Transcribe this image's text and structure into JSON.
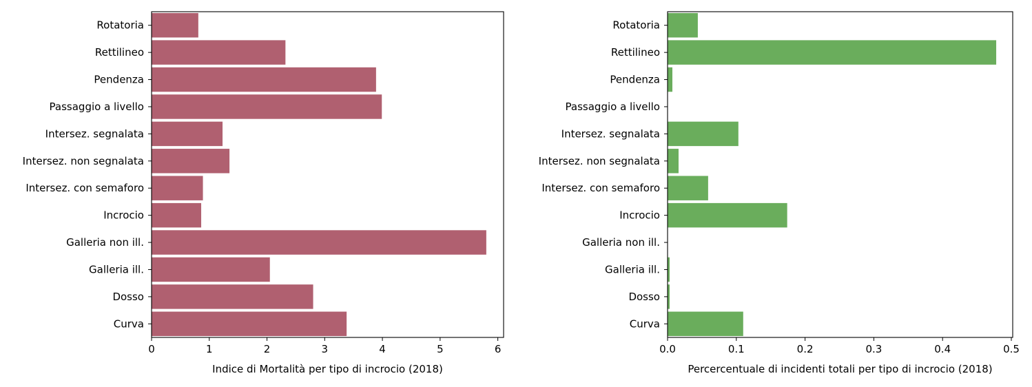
{
  "chart_data": [
    {
      "type": "bar",
      "orientation": "horizontal",
      "title": "",
      "xlabel": "Indice di Mortalità per tipo di incrocio (2018)",
      "ylabel": "",
      "xlim": [
        0,
        6.1
      ],
      "xticks": [
        0,
        1,
        2,
        3,
        4,
        5,
        6
      ],
      "xtick_labels": [
        "0",
        "1",
        "2",
        "3",
        "4",
        "5",
        "6"
      ],
      "grid": false,
      "color": "#b06070",
      "categories": [
        "Rotatoria",
        "Rettilineo",
        "Pendenza",
        "Passaggio a livello",
        "Intersez. segnalata",
        "Intersez. non segnalata",
        "Intersez. con semaforo",
        "Incrocio",
        "Galleria non ill.",
        "Galleria ill.",
        "Dosso",
        "Curva"
      ],
      "values": [
        0.81,
        2.32,
        3.89,
        3.99,
        1.23,
        1.35,
        0.89,
        0.86,
        5.8,
        2.05,
        2.8,
        3.38
      ]
    },
    {
      "type": "bar",
      "orientation": "horizontal",
      "title": "",
      "xlabel": "Percercentuale di incidenti totali per tipo di incrocio (2018)",
      "ylabel": "",
      "xlim": [
        0,
        0.502
      ],
      "xticks": [
        0,
        0.1,
        0.2,
        0.3,
        0.4,
        0.5
      ],
      "xtick_labels": [
        "0.0",
        "0.1",
        "0.2",
        "0.3",
        "0.4",
        "0.5"
      ],
      "grid": false,
      "color": "#6aad5c",
      "categories": [
        "Rotatoria",
        "Rettilineo",
        "Pendenza",
        "Passaggio a livello",
        "Intersez. segnalata",
        "Intersez. non segnalata",
        "Intersez. con semaforo",
        "Incrocio",
        "Galleria non ill.",
        "Galleria ill.",
        "Dosso",
        "Curva"
      ],
      "values": [
        0.044,
        0.478,
        0.007,
        0.0,
        0.103,
        0.016,
        0.059,
        0.174,
        0.0,
        0.003,
        0.003,
        0.11
      ]
    }
  ]
}
